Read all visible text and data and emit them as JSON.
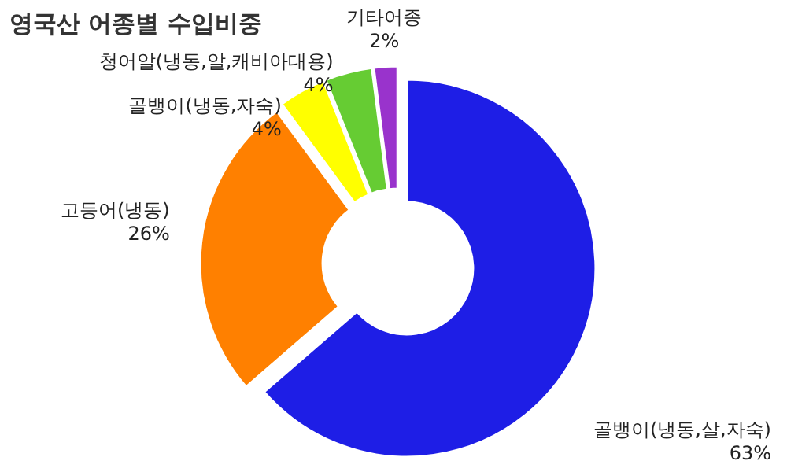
{
  "chart_data": {
    "type": "donut",
    "title": "영국산 어종별 수입비중",
    "categories": [
      "골뱅이(냉동,살,자숙)",
      "고등어(냉동)",
      "골뱅이(냉동,자숙)",
      "청어알(냉동,알,캐비아대용)",
      "기타어종"
    ],
    "values": [
      63,
      26,
      4,
      4,
      2
    ],
    "value_labels": [
      "63%",
      "26%",
      "4%",
      "4%",
      "2%"
    ],
    "colors": [
      "#1e1ee6",
      "#ff8000",
      "#ffff00",
      "#66cc33",
      "#9933cc"
    ]
  }
}
